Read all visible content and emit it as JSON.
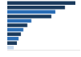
{
  "chart_data": {
    "type": "bar",
    "orientation": "horizontal",
    "categories": [
      null,
      null,
      null,
      null,
      null,
      null,
      null,
      null,
      null,
      null,
      null
    ],
    "values": [
      85,
      72,
      60,
      55,
      30,
      25,
      20,
      17,
      14,
      12,
      8
    ],
    "colors": [
      "#1a3a5c",
      "#1a3a5c",
      "#2a6db5",
      "#1a3a5c",
      "#2a6db5",
      "#1a3a5c",
      "#2a6db5",
      "#1a3a5c",
      "#2a6db5",
      "#1a3a5c",
      "#c5d8ed"
    ],
    "xlim": [
      0,
      90
    ],
    "tick_labels": false,
    "grid": false
  }
}
